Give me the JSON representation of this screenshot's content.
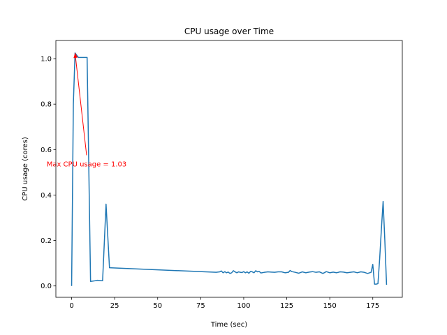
{
  "chart_data": {
    "type": "line",
    "title": "CPU usage over Time",
    "xlabel": "Time (sec)",
    "ylabel": "CPU usage (cores)",
    "xlim": [
      -9.15,
      192.15
    ],
    "ylim": [
      -0.05,
      1.08
    ],
    "xticks": [
      0,
      25,
      50,
      75,
      100,
      125,
      150,
      175
    ],
    "yticks": [
      0.0,
      0.2,
      0.4,
      0.6,
      0.8,
      1.0
    ],
    "xtick_labels": [
      "0",
      "25",
      "50",
      "75",
      "100",
      "125",
      "150",
      "175"
    ],
    "ytick_labels": [
      "0.0",
      "0.2",
      "0.4",
      "0.6",
      "0.8",
      "1.0"
    ],
    "grid": false,
    "series": [
      {
        "color": "#1f77b4",
        "x": [
          0,
          1,
          2,
          3,
          4,
          5,
          6,
          7,
          8,
          9,
          11,
          13,
          15,
          18,
          20,
          22,
          84,
          86,
          87,
          88,
          89,
          90,
          91,
          92,
          93,
          94,
          95,
          96,
          97,
          98,
          99,
          100,
          101,
          102,
          103,
          104,
          105,
          106,
          107,
          108,
          109,
          110,
          112,
          114,
          116,
          118,
          120,
          122,
          124,
          126,
          127,
          128,
          130,
          132,
          134,
          136,
          138,
          140,
          142,
          144,
          146,
          148,
          150,
          152,
          154,
          156,
          158,
          160,
          162,
          164,
          166,
          168,
          170,
          172,
          174,
          175,
          176,
          177,
          178,
          179,
          180,
          181,
          182,
          183
        ],
        "y": [
          0.0,
          0.8,
          1.025,
          1.015,
          1.005,
          1.005,
          1.005,
          1.005,
          1.005,
          1.005,
          0.02,
          0.022,
          0.025,
          0.023,
          0.36,
          0.08,
          0.06,
          0.062,
          0.066,
          0.058,
          0.063,
          0.058,
          0.061,
          0.055,
          0.058,
          0.067,
          0.062,
          0.058,
          0.062,
          0.06,
          0.059,
          0.063,
          0.058,
          0.062,
          0.056,
          0.064,
          0.062,
          0.058,
          0.067,
          0.062,
          0.064,
          0.057,
          0.06,
          0.062,
          0.061,
          0.06,
          0.062,
          0.062,
          0.058,
          0.06,
          0.068,
          0.063,
          0.06,
          0.056,
          0.062,
          0.058,
          0.061,
          0.063,
          0.06,
          0.062,
          0.055,
          0.063,
          0.058,
          0.061,
          0.058,
          0.062,
          0.061,
          0.058,
          0.06,
          0.062,
          0.058,
          0.062,
          0.06,
          0.055,
          0.06,
          0.095,
          0.008,
          0.008,
          0.01,
          0.12,
          0.25,
          0.372,
          0.2,
          0.005
        ]
      }
    ],
    "annotations": [
      {
        "text": "Max CPU usage = 1.03",
        "color": "#ff0000",
        "point": [
          2,
          1.025
        ],
        "text_anchor": [
          8.7,
          0.575
        ]
      }
    ]
  }
}
